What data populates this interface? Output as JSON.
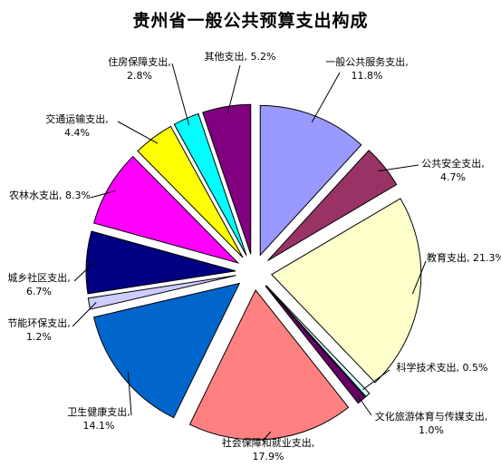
{
  "chart_data": {
    "type": "pie",
    "title": "贵州省一般公共预算支出构成",
    "slices": [
      {
        "label": "一般公共服务支出",
        "value": 11.8,
        "display": "11.8%",
        "color": "#9999FF"
      },
      {
        "label": "公共安全支出",
        "value": 4.7,
        "display": "4.7%",
        "color": "#993366"
      },
      {
        "label": "教育支出",
        "value": 21.3,
        "display": "21.3%",
        "color": "#FFFFCC"
      },
      {
        "label": "科学技术支出",
        "value": 0.5,
        "display": "0.5%",
        "color": "#CCFFFF"
      },
      {
        "label": "文化旅游体育与传媒支出",
        "value": 1.0,
        "display": "1.0%",
        "color": "#660066"
      },
      {
        "label": "社会保障和就业支出",
        "value": 17.9,
        "display": "17.9%",
        "color": "#FF8080"
      },
      {
        "label": "卫生健康支出",
        "value": 14.1,
        "display": "14.1%",
        "color": "#0066CC"
      },
      {
        "label": "节能环保支出",
        "value": 1.2,
        "display": "1.2%",
        "color": "#CCCCFF"
      },
      {
        "label": "城乡社区支出",
        "value": 6.7,
        "display": "6.7%",
        "color": "#000080"
      },
      {
        "label": "农林水支出",
        "value": 8.3,
        "display": "8.3%",
        "color": "#FF00FF"
      },
      {
        "label": "交通运输支出",
        "value": 4.4,
        "display": "4.4%",
        "color": "#FFFF00"
      },
      {
        "label": "住房保障支出",
        "value": 2.8,
        "display": "2.8%",
        "color": "#00FFFF"
      },
      {
        "label": "其他支出",
        "value": 5.2,
        "display": "5.2%",
        "color": "#800080"
      }
    ],
    "legend": "none",
    "label_position": "outside-with-leader-lines"
  }
}
